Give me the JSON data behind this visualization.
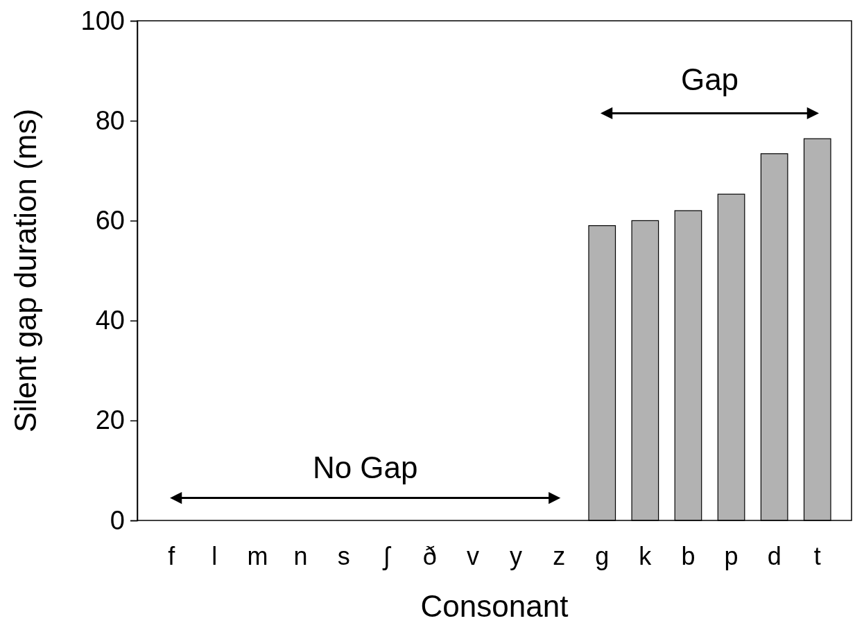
{
  "chart_data": {
    "type": "bar",
    "xlabel": "Consonant",
    "ylabel": "Silent gap duration (ms)",
    "categories": [
      "f",
      "l",
      "m",
      "n",
      "s",
      "ʃ",
      "ð",
      "v",
      "y",
      "z",
      "g",
      "k",
      "b",
      "p",
      "d",
      "t"
    ],
    "values": [
      null,
      null,
      null,
      null,
      null,
      null,
      null,
      null,
      null,
      null,
      59,
      60,
      62,
      65.3,
      73.4,
      76.4
    ],
    "color": "#b2b2b2",
    "ylim": [
      0,
      100
    ],
    "yticks": [
      0,
      20,
      40,
      60,
      80,
      100
    ],
    "grid": false,
    "annotations": [
      "No Gap",
      "Gap"
    ]
  }
}
